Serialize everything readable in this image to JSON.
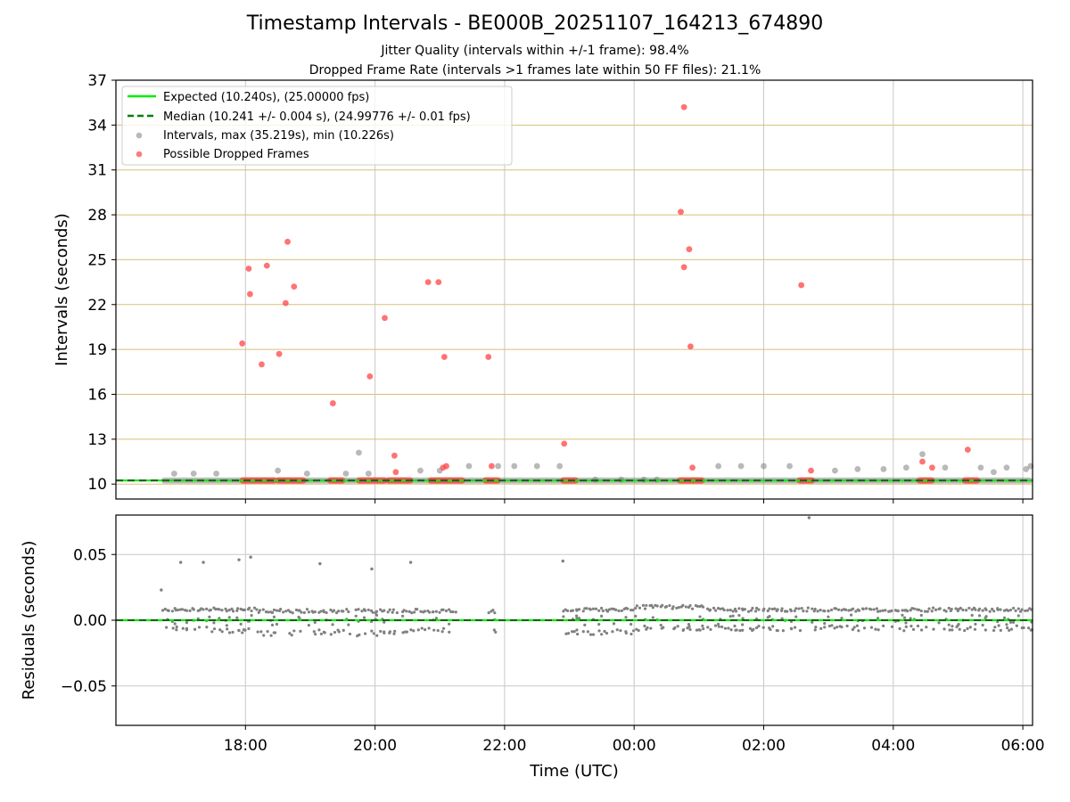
{
  "title": "Timestamp Intervals - BE000B_20251107_164213_674890",
  "subtitle_jitter": "Jitter Quality (intervals within +/-1 frame): 98.4%",
  "subtitle_dropped": "Dropped Frame Rate (intervals >1 frames late within 50 FF files): 21.1%",
  "colors": {
    "expected": "#00ee00",
    "median": "#008000",
    "intervals": "#808080",
    "dropped": "#ff4444",
    "hgrid": "#d9bf7a",
    "vgrid": "#c8c8c8"
  },
  "chart_data": [
    {
      "type": "scatter",
      "name": "intervals",
      "ylabel": "Intervals (seconds)",
      "xlabel": "",
      "x_unit": "hours since 00:00 UTC Nov 7",
      "xlim": [
        16.0,
        30.15
      ],
      "ylim": [
        9.0,
        37.0
      ],
      "yticks": [
        10,
        13,
        16,
        19,
        22,
        25,
        28,
        31,
        34,
        37
      ],
      "yticklabels": [
        "10",
        "13",
        "16",
        "19",
        "22",
        "25",
        "28",
        "31",
        "34",
        "37"
      ],
      "xticks": [
        18,
        20,
        22,
        24,
        26,
        28,
        30
      ],
      "xticklabels": [
        "18:00",
        "20:00",
        "22:00",
        "00:00",
        "02:00",
        "04:00",
        "06:00"
      ],
      "reference_lines": {
        "expected": 10.24,
        "median": 10.241
      },
      "legend_position": "upper-left",
      "legend": [
        "Expected (10.240s), (25.00000 fps)",
        "Median (10.241 +/- 0.004 s), (24.99776 +/- 0.01 fps)",
        "Intervals, max (35.219s), min (10.226s)",
        "Possible Dropped Frames"
      ],
      "baseline_span": [
        16.7,
        30.15
      ],
      "dropped_clusters": [
        [
          17.95,
          18.45
        ],
        [
          18.5,
          18.9
        ],
        [
          19.3,
          19.5
        ],
        [
          19.75,
          20.15
        ],
        [
          20.2,
          20.55
        ],
        [
          20.85,
          21.35
        ],
        [
          21.7,
          21.9
        ],
        [
          22.9,
          23.1
        ],
        [
          24.7,
          25.05
        ],
        [
          26.55,
          26.75
        ],
        [
          28.4,
          28.6
        ],
        [
          29.1,
          29.3
        ]
      ],
      "series": [
        {
          "name": "Intervals",
          "points": [
            [
              16.9,
              10.7
            ],
            [
              17.2,
              10.7
            ],
            [
              17.55,
              10.7
            ],
            [
              18.5,
              10.9
            ],
            [
              18.95,
              10.7
            ],
            [
              19.55,
              10.7
            ],
            [
              19.75,
              12.1
            ],
            [
              19.9,
              10.7
            ],
            [
              20.7,
              10.9
            ],
            [
              21.0,
              10.9
            ],
            [
              21.45,
              11.2
            ],
            [
              21.9,
              11.2
            ],
            [
              22.15,
              11.2
            ],
            [
              22.5,
              11.2
            ],
            [
              22.85,
              11.2
            ],
            [
              23.4,
              10.3
            ],
            [
              23.8,
              10.3
            ],
            [
              24.15,
              10.3
            ],
            [
              24.35,
              10.3
            ],
            [
              25.3,
              11.2
            ],
            [
              25.65,
              11.2
            ],
            [
              26.0,
              11.2
            ],
            [
              26.4,
              11.2
            ],
            [
              27.1,
              10.9
            ],
            [
              27.45,
              11.0
            ],
            [
              27.85,
              11.0
            ],
            [
              28.2,
              11.1
            ],
            [
              28.45,
              12.0
            ],
            [
              28.8,
              11.1
            ],
            [
              29.35,
              11.1
            ],
            [
              29.55,
              10.8
            ],
            [
              29.75,
              11.1
            ],
            [
              30.05,
              11.0
            ],
            [
              30.12,
              11.2
            ]
          ]
        },
        {
          "name": "Possible Dropped Frames",
          "points": [
            [
              17.95,
              19.4
            ],
            [
              18.05,
              24.4
            ],
            [
              18.07,
              22.7
            ],
            [
              18.25,
              18.0
            ],
            [
              18.33,
              24.6
            ],
            [
              18.52,
              18.7
            ],
            [
              18.62,
              22.1
            ],
            [
              18.65,
              26.2
            ],
            [
              18.75,
              23.2
            ],
            [
              19.35,
              15.4
            ],
            [
              19.92,
              17.2
            ],
            [
              20.15,
              21.1
            ],
            [
              20.3,
              11.9
            ],
            [
              20.32,
              10.8
            ],
            [
              20.82,
              23.5
            ],
            [
              20.98,
              23.5
            ],
            [
              21.05,
              11.1
            ],
            [
              21.07,
              18.5
            ],
            [
              21.1,
              11.2
            ],
            [
              21.75,
              18.5
            ],
            [
              21.8,
              11.2
            ],
            [
              22.92,
              12.7
            ],
            [
              24.72,
              28.2
            ],
            [
              24.77,
              24.5
            ],
            [
              24.77,
              35.2
            ],
            [
              24.85,
              25.7
            ],
            [
              24.87,
              19.2
            ],
            [
              24.9,
              11.1
            ],
            [
              26.58,
              23.3
            ],
            [
              26.73,
              10.9
            ],
            [
              28.45,
              11.5
            ],
            [
              28.6,
              11.1
            ],
            [
              29.15,
              12.3
            ]
          ]
        }
      ]
    },
    {
      "type": "scatter",
      "name": "residuals",
      "ylabel": "Residuals (seconds)",
      "xlabel": "Time (UTC)",
      "xlim": [
        16.0,
        30.15
      ],
      "ylim": [
        -0.08,
        0.08
      ],
      "yticks": [
        -0.05,
        0.0,
        0.05
      ],
      "yticklabels": [
        "−0.05",
        "0.00",
        "0.05"
      ],
      "xticks": [
        18,
        20,
        22,
        24,
        26,
        28,
        30
      ],
      "xticklabels": [
        "18:00",
        "20:00",
        "22:00",
        "00:00",
        "02:00",
        "04:00",
        "06:00"
      ],
      "reference_lines": {
        "expected": 0.0,
        "median": 0.0
      },
      "outliers": [
        [
          16.7,
          0.023
        ],
        [
          17.0,
          0.044
        ],
        [
          17.35,
          0.044
        ],
        [
          17.9,
          0.046
        ],
        [
          18.08,
          0.048
        ],
        [
          19.15,
          0.043
        ],
        [
          19.95,
          0.039
        ],
        [
          20.55,
          0.044
        ],
        [
          22.9,
          0.045
        ],
        [
          26.7,
          0.078
        ]
      ],
      "bands": [
        {
          "range": [
            16.7,
            17.45
          ],
          "upper": 0.008,
          "lower": -0.007
        },
        {
          "range": [
            17.45,
            18.15
          ],
          "upper": 0.008,
          "lower": -0.008
        },
        {
          "range": [
            18.15,
            19.0
          ],
          "upper": 0.007,
          "lower": -0.01
        },
        {
          "range": [
            19.0,
            19.6
          ],
          "upper": 0.007,
          "lower": -0.009
        },
        {
          "range": [
            19.7,
            20.35
          ],
          "upper": 0.007,
          "lower": -0.01
        },
        {
          "range": [
            20.4,
            21.25
          ],
          "upper": 0.007,
          "lower": -0.008
        },
        {
          "range": [
            21.75,
            21.85
          ],
          "upper": 0.007,
          "lower": -0.009
        },
        {
          "range": [
            22.9,
            24.0
          ],
          "upper": 0.008,
          "lower": -0.009
        },
        {
          "range": [
            24.0,
            25.1
          ],
          "upper": 0.01,
          "lower": -0.006
        },
        {
          "range": [
            25.1,
            30.15
          ],
          "upper": 0.008,
          "lower": -0.006
        }
      ]
    }
  ]
}
